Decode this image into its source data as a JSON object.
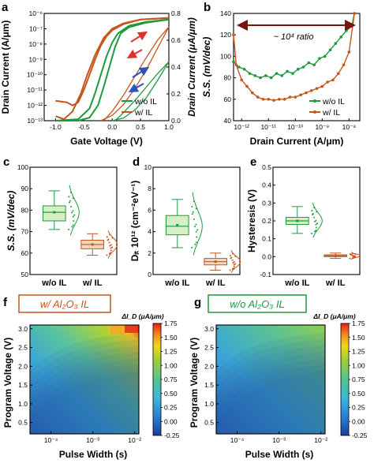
{
  "colors": {
    "wo": "#1e9a3e",
    "w": "#c4561e",
    "wine": "#7d1212",
    "red": "#e0312a",
    "blue": "#2e52b8",
    "box_wo_fill": "#d7efc4",
    "box_w_fill": "#f6d7bd"
  },
  "panels": {
    "a": "a",
    "b": "b",
    "c": "c",
    "d": "d",
    "e": "e",
    "f": "f",
    "g": "g"
  },
  "chart_data": [
    {
      "id": "a",
      "type": "line",
      "xlabel": "Gate Voltage (V)",
      "ylabel": "Drain Current (A/μm)",
      "ylabel_right": "Drain Current (μA/μm)",
      "xlim": [
        -1.2,
        1.0
      ],
      "ylim_log_exp": [
        -13,
        -6
      ],
      "ylim_right": [
        0,
        0.8
      ],
      "xticks": [
        "-1.0",
        "-0.5",
        "0.0",
        "0.5",
        "1.0"
      ],
      "yticks": [
        "10⁻¹³",
        "10⁻¹²",
        "10⁻¹¹",
        "10⁻¹⁰",
        "10⁻⁹",
        "10⁻⁸",
        "10⁻⁷",
        "10⁻⁶"
      ],
      "yticks_right": [
        "0.0",
        "0.2",
        "0.4",
        "0.6",
        "0.8"
      ],
      "legend": [
        "w/o IL",
        "w/ IL"
      ],
      "legend_position": "bottom-right",
      "series": [
        {
          "name": "w/o IL",
          "scale": "log",
          "x": [
            -1.0,
            -0.6,
            -0.4,
            -0.3,
            -0.2,
            -0.1,
            0.0,
            0.1,
            0.3,
            0.6,
            1.0
          ],
          "y_exp": [
            -13.0,
            -12.9,
            -12.2,
            -11.2,
            -10.0,
            -8.8,
            -7.9,
            -7.3,
            -6.8,
            -6.55,
            -6.4
          ]
        },
        {
          "name": "w/o IL (reverse)",
          "scale": "log",
          "x": [
            1.0,
            0.6,
            0.3,
            0.15,
            0.05,
            -0.05,
            -0.15,
            -0.25,
            -0.4,
            -0.6,
            -1.0
          ],
          "y_exp": [
            -6.4,
            -6.6,
            -6.9,
            -7.3,
            -8.2,
            -9.5,
            -10.8,
            -12.0,
            -12.8,
            -13.0,
            -13.0
          ]
        },
        {
          "name": "w/ IL",
          "scale": "log",
          "x": [
            -1.0,
            -0.8,
            -0.7,
            -0.6,
            -0.5,
            -0.4,
            -0.3,
            -0.2,
            -0.1,
            0.0,
            0.2,
            0.5,
            1.0
          ],
          "y_exp": [
            -11.7,
            -11.8,
            -12.0,
            -11.8,
            -11.0,
            -10.0,
            -9.0,
            -8.1,
            -7.5,
            -7.1,
            -6.7,
            -6.4,
            -6.3
          ]
        },
        {
          "name": "w/ IL (reverse)",
          "scale": "log",
          "x": [
            1.0,
            0.5,
            0.2,
            0.0,
            -0.15,
            -0.3,
            -0.45,
            -0.55,
            -0.7,
            -0.85,
            -1.0
          ],
          "y_exp": [
            -6.3,
            -6.4,
            -6.65,
            -7.0,
            -7.6,
            -8.7,
            -10.1,
            -11.2,
            -12.4,
            -12.9,
            -12.7
          ]
        },
        {
          "name": "w/o IL linear",
          "scale": "linear",
          "x": [
            0.0,
            0.2,
            0.4,
            0.6,
            0.8,
            1.0
          ],
          "y": [
            0.0,
            0.02,
            0.08,
            0.17,
            0.3,
            0.44
          ]
        },
        {
          "name": "w/o IL linear (reverse)",
          "scale": "linear",
          "x": [
            1.0,
            0.8,
            0.6,
            0.4,
            0.2,
            0.05
          ],
          "y": [
            0.44,
            0.35,
            0.25,
            0.15,
            0.06,
            0.0
          ]
        },
        {
          "name": "w/ IL linear",
          "scale": "linear",
          "x": [
            -0.2,
            0.0,
            0.2,
            0.4,
            0.6,
            0.8,
            1.0
          ],
          "y": [
            0.0,
            0.04,
            0.12,
            0.24,
            0.38,
            0.54,
            0.7
          ]
        },
        {
          "name": "w/ IL linear (reverse)",
          "scale": "linear",
          "x": [
            1.0,
            0.8,
            0.6,
            0.4,
            0.2,
            0.0,
            -0.15
          ],
          "y": [
            0.7,
            0.6,
            0.47,
            0.33,
            0.19,
            0.07,
            0.0
          ]
        }
      ]
    },
    {
      "id": "b",
      "type": "line",
      "xlabel": "Drain Current (A/μm)",
      "ylabel": "S.S. (mV/dec)",
      "xlim_log_exp": [
        -12.3,
        -7.6
      ],
      "ylim": [
        40,
        140
      ],
      "xticks": [
        "10⁻¹²",
        "10⁻¹¹",
        "10⁻¹⁰",
        "10⁻⁹",
        "10⁻⁸"
      ],
      "yticks": [
        "40",
        "60",
        "80",
        "100",
        "120",
        "140"
      ],
      "annotation": "~ 10⁴ ratio",
      "legend": [
        "w/o IL",
        "w/ IL"
      ],
      "legend_position": "bottom-right",
      "series": [
        {
          "name": "w/o IL",
          "x_exp": [
            -12.3,
            -12.1,
            -11.9,
            -11.7,
            -11.5,
            -11.3,
            -11.1,
            -10.9,
            -10.7,
            -10.5,
            -10.3,
            -10.1,
            -9.9,
            -9.7,
            -9.5,
            -9.3,
            -9.1,
            -8.9,
            -8.7,
            -8.5,
            -8.3,
            -8.1,
            -7.9,
            -7.8
          ],
          "y": [
            95,
            90,
            88,
            84,
            82,
            80,
            82,
            80,
            84,
            82,
            86,
            84,
            88,
            90,
            94,
            92,
            98,
            100,
            106,
            112,
            118,
            124,
            128,
            140
          ]
        },
        {
          "name": "w/ IL",
          "x_exp": [
            -12.3,
            -12.2,
            -12.0,
            -11.8,
            -11.6,
            -11.4,
            -11.2,
            -11.0,
            -10.8,
            -10.6,
            -10.4,
            -10.2,
            -10.0,
            -9.8,
            -9.6,
            -9.4,
            -9.2,
            -9.0,
            -8.8,
            -8.6,
            -8.4,
            -8.2,
            -8.0,
            -7.8
          ],
          "y": [
            120,
            92,
            78,
            72,
            66,
            62,
            60,
            60,
            59,
            60,
            60,
            62,
            62,
            64,
            66,
            68,
            70,
            72,
            76,
            78,
            84,
            92,
            104,
            140
          ]
        }
      ]
    },
    {
      "id": "c",
      "type": "box",
      "ylabel": "S.S. (mV/dec)",
      "ylim": [
        50,
        100
      ],
      "yticks": [
        "50",
        "60",
        "70",
        "80",
        "90",
        "100"
      ],
      "categories": [
        "w/o IL",
        "w/ IL"
      ],
      "series": [
        {
          "name": "w/o IL",
          "min": 71,
          "q1": 75,
          "median": 79,
          "mean": 79,
          "q3": 82,
          "max": 89
        },
        {
          "name": "w/ IL",
          "min": 59,
          "q1": 62,
          "median": 64,
          "mean": 64,
          "q3": 66,
          "max": 69
        }
      ]
    },
    {
      "id": "d",
      "type": "box",
      "ylabel": "Dᵢₜ 10¹² (cm⁻²eV⁻¹)",
      "ylim": [
        0,
        10
      ],
      "yticks": [
        "0",
        "2",
        "4",
        "6",
        "8",
        "10"
      ],
      "categories": [
        "w/o IL",
        "w/ IL"
      ],
      "series": [
        {
          "name": "w/o IL",
          "min": 2.5,
          "q1": 3.7,
          "median": 4.5,
          "mean": 4.6,
          "q3": 5.5,
          "max": 7.0
        },
        {
          "name": "w/ IL",
          "min": 0.4,
          "q1": 0.9,
          "median": 1.2,
          "mean": 1.2,
          "q3": 1.5,
          "max": 2.0
        }
      ]
    },
    {
      "id": "e",
      "type": "box",
      "ylabel": "Hysteresis (V)",
      "ylim": [
        -0.1,
        0.5
      ],
      "yticks": [
        "-0.1",
        "0.0",
        "0.1",
        "0.2",
        "0.3",
        "0.4",
        "0.5"
      ],
      "categories": [
        "w/o IL",
        "w/ IL"
      ],
      "series": [
        {
          "name": "w/o IL",
          "min": 0.13,
          "q1": 0.18,
          "median": 0.2,
          "mean": 0.2,
          "q3": 0.22,
          "max": 0.28
        },
        {
          "name": "w/ IL",
          "min": -0.01,
          "q1": 0.0,
          "median": 0.005,
          "mean": 0.005,
          "q3": 0.01,
          "max": 0.02
        }
      ]
    },
    {
      "id": "f",
      "type": "heatmap",
      "title": "w/ Al₂O₃ IL",
      "xlabel": "Pulse Width (s)",
      "ylabel": "Program Voltage (V)",
      "xlim_log_exp": [
        -4.5,
        -1.9
      ],
      "ylim": [
        0.2,
        3.1
      ],
      "xticks": [
        "10⁻⁴",
        "10⁻³",
        "10⁻²"
      ],
      "yticks": [
        "0.5",
        "1.0",
        "1.5",
        "2.0",
        "2.5",
        "3.0"
      ],
      "colorbar_label": "ΔI_D (μA/μm)",
      "colorbar_ticks": [
        "-0.25",
        "0.00",
        "0.25",
        "0.50",
        "0.75",
        "1.00",
        "1.25",
        "1.50",
        "1.75"
      ],
      "clim": [
        -0.25,
        1.75
      ],
      "max_value": 1.75
    },
    {
      "id": "g",
      "type": "heatmap",
      "title": "w/o Al₂O₃ IL",
      "xlabel": "Pulse Width (s)",
      "ylabel": "Program Voltage (V)",
      "xlim_log_exp": [
        -4.5,
        -1.9
      ],
      "ylim": [
        0.2,
        3.1
      ],
      "xticks": [
        "10⁻⁴",
        "10⁻³",
        "10⁻²"
      ],
      "yticks": [
        "0.5",
        "1.0",
        "1.5",
        "2.0",
        "2.5",
        "3.0"
      ],
      "colorbar_label": "ΔI_D (μA/μm)",
      "colorbar_ticks": [
        "-0.25",
        "0.00",
        "0.25",
        "0.50",
        "0.75",
        "1.00",
        "1.25",
        "1.50",
        "1.75"
      ],
      "clim": [
        -0.25,
        1.75
      ],
      "max_value": 1.0
    }
  ]
}
